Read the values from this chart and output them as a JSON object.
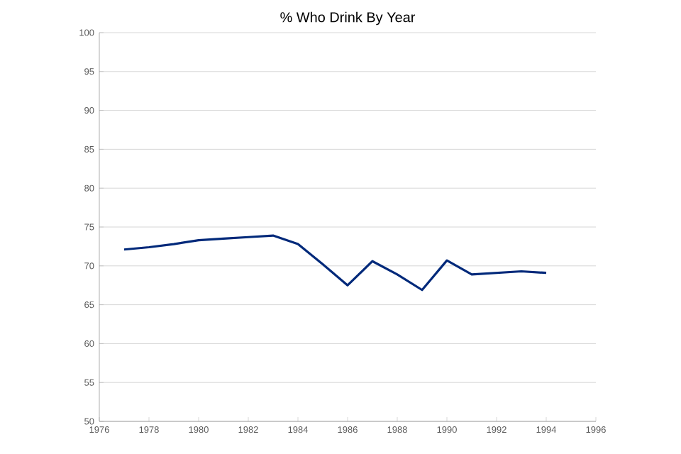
{
  "chart_data": {
    "type": "line",
    "title": "% Who Drink By Year",
    "x": [
      1977,
      1978,
      1979,
      1980,
      1981,
      1982,
      1983,
      1984,
      1985,
      1986,
      1987,
      1988,
      1989,
      1990,
      1991,
      1992,
      1993,
      1994
    ],
    "series": [
      {
        "color": "#00297a",
        "values": [
          72.1,
          72.4,
          72.8,
          73.3,
          73.5,
          73.7,
          73.9,
          72.8,
          70.2,
          67.5,
          70.6,
          68.9,
          66.9,
          70.7,
          68.9,
          69.1,
          69.3,
          69.1
        ]
      }
    ],
    "xlim": [
      1976,
      1996
    ],
    "xticks": [
      1976,
      1978,
      1980,
      1982,
      1984,
      1986,
      1988,
      1990,
      1992,
      1994,
      1996
    ],
    "ylim": [
      50,
      100
    ],
    "yticks": [
      50,
      55,
      60,
      65,
      70,
      75,
      80,
      85,
      90,
      95,
      100
    ],
    "grid": "y",
    "marker": "none",
    "line_style": "solid"
  }
}
